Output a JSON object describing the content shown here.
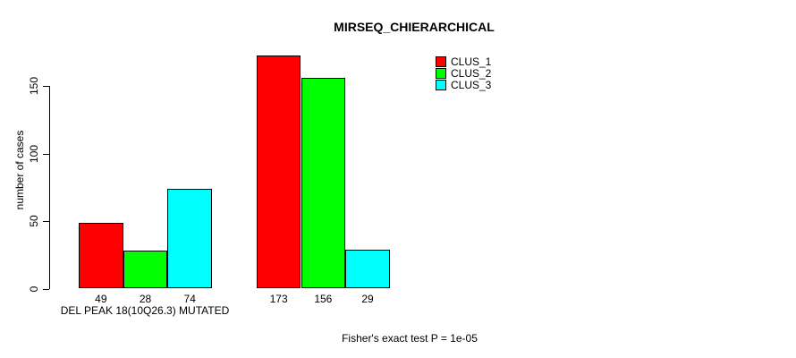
{
  "title": "MIRSEQ_CHIERARCHICAL",
  "y_axis": {
    "label": "number of cases",
    "ticks": [
      0,
      50,
      100,
      150
    ]
  },
  "x_label": "DEL PEAK 18(10Q26.3) MUTATED",
  "footnote": "Fisher's exact test P = 1e-05",
  "legend": {
    "items": [
      {
        "label": "CLUS_1",
        "color": "#ff0000"
      },
      {
        "label": "CLUS_2",
        "color": "#00ff00"
      },
      {
        "label": "CLUS_3",
        "color": "#00ffff"
      }
    ]
  },
  "chart_data": {
    "type": "bar",
    "title": "MIRSEQ_CHIERARCHICAL",
    "xlabel": "DEL PEAK 18(10Q26.3) MUTATED",
    "ylabel": "number of cases",
    "categories": [
      "DEL PEAK 18(10Q26.3) MUTATED",
      ""
    ],
    "series": [
      {
        "name": "CLUS_1",
        "color": "#ff0000",
        "values": [
          49,
          173
        ]
      },
      {
        "name": "CLUS_2",
        "color": "#00ff00",
        "values": [
          28,
          156
        ]
      },
      {
        "name": "CLUS_3",
        "color": "#00ffff",
        "values": [
          74,
          29
        ]
      }
    ],
    "bar_value_labels": [
      [
        49,
        28,
        74
      ],
      [
        173,
        156,
        29
      ]
    ],
    "ylim": [
      0,
      173
    ],
    "yticks": [
      0,
      50,
      100,
      150
    ],
    "grid": false,
    "legend_position": "top-right",
    "annotation": "Fisher's exact test P = 1e-05",
    "bar_border_color": "#000000"
  }
}
